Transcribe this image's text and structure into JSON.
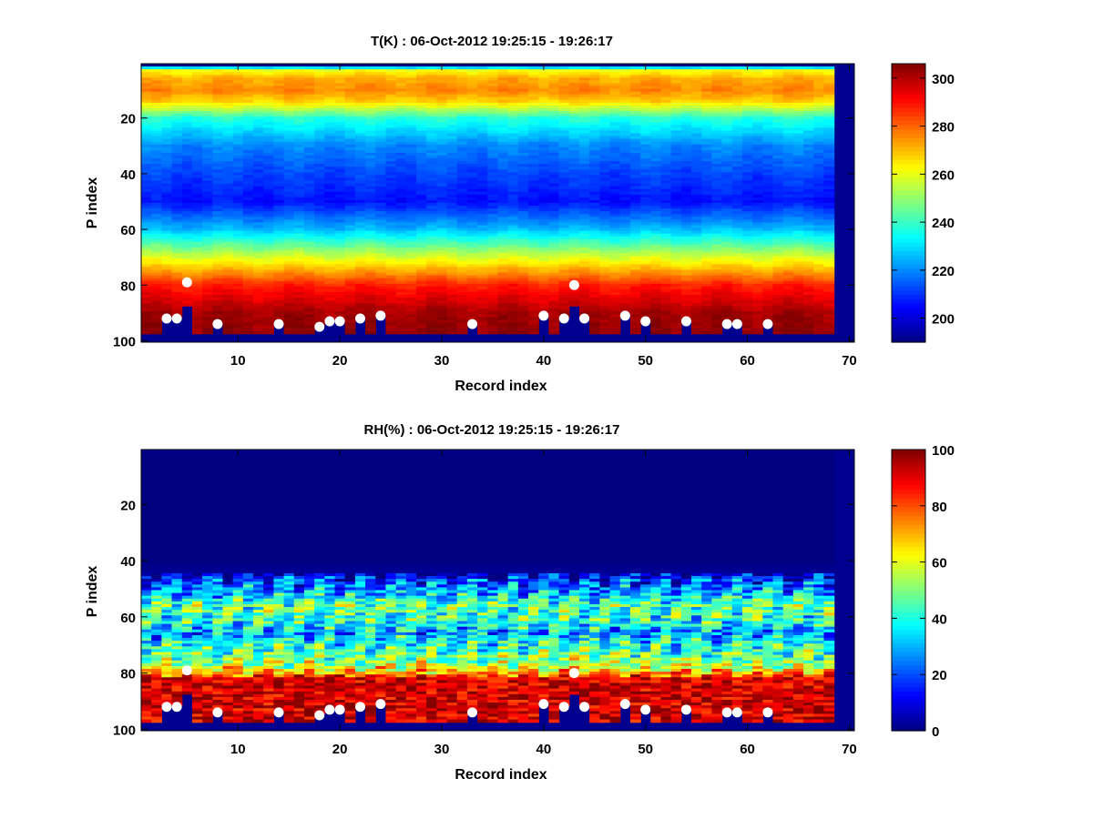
{
  "chart_data": [
    {
      "type": "heatmap",
      "title": "T(K) : 06-Oct-2012 19:25:15 - 19:26:17",
      "xlabel": "Record index",
      "ylabel": "P index",
      "xlim": [
        0.5,
        70.5
      ],
      "ylim": [
        0.5,
        100.5
      ],
      "y_reversed": true,
      "xticks": [
        10,
        20,
        30,
        40,
        50,
        60,
        70
      ],
      "yticks": [
        20,
        40,
        60,
        80,
        100
      ],
      "n_records": 68,
      "colormap": "jet",
      "colorbar": {
        "min": 190,
        "max": 306,
        "ticks": [
          200,
          220,
          240,
          260,
          280,
          300
        ]
      },
      "fill_color": "#00008f",
      "profile_mean": {
        "p": [
          1,
          3,
          6,
          10,
          14,
          20,
          30,
          40,
          50,
          60,
          70,
          80,
          90,
          97
        ],
        "value": [
          200,
          262,
          272,
          276,
          268,
          238,
          220,
          212,
          206,
          226,
          258,
          288,
          302,
          304
        ]
      },
      "markers": [
        {
          "x": 3,
          "y": 92
        },
        {
          "x": 4,
          "y": 92
        },
        {
          "x": 5,
          "y": 79
        },
        {
          "x": 8,
          "y": 94
        },
        {
          "x": 14,
          "y": 94
        },
        {
          "x": 18,
          "y": 95
        },
        {
          "x": 19,
          "y": 93
        },
        {
          "x": 20,
          "y": 93
        },
        {
          "x": 22,
          "y": 92
        },
        {
          "x": 24,
          "y": 91
        },
        {
          "x": 33,
          "y": 94
        },
        {
          "x": 40,
          "y": 91
        },
        {
          "x": 42,
          "y": 92
        },
        {
          "x": 43,
          "y": 80
        },
        {
          "x": 44,
          "y": 92
        },
        {
          "x": 48,
          "y": 91
        },
        {
          "x": 50,
          "y": 93
        },
        {
          "x": 54,
          "y": 93
        },
        {
          "x": 58,
          "y": 94
        },
        {
          "x": 59,
          "y": 94
        },
        {
          "x": 62,
          "y": 94
        }
      ]
    },
    {
      "type": "heatmap",
      "title": "RH(%) : 06-Oct-2012 19:25:15 - 19:26:17",
      "xlabel": "Record index",
      "ylabel": "P index",
      "xlim": [
        0.5,
        70.5
      ],
      "ylim": [
        0.5,
        100.5
      ],
      "y_reversed": true,
      "xticks": [
        10,
        20,
        30,
        40,
        50,
        60,
        70
      ],
      "yticks": [
        20,
        40,
        60,
        80,
        100
      ],
      "n_records": 68,
      "colormap": "jet",
      "colorbar": {
        "min": 0,
        "max": 100,
        "ticks": [
          0,
          20,
          40,
          60,
          80,
          100
        ]
      },
      "fill_color": "#00008f",
      "profile_mean": {
        "p": [
          1,
          40,
          44,
          47,
          52,
          56,
          62,
          66,
          70,
          75,
          78,
          80,
          82,
          86,
          97
        ],
        "value": [
          0,
          0,
          2,
          18,
          32,
          48,
          40,
          28,
          40,
          50,
          60,
          72,
          90,
          95,
          95
        ]
      },
      "markers": [
        {
          "x": 3,
          "y": 92
        },
        {
          "x": 4,
          "y": 92
        },
        {
          "x": 5,
          "y": 79
        },
        {
          "x": 8,
          "y": 94
        },
        {
          "x": 14,
          "y": 94
        },
        {
          "x": 18,
          "y": 95
        },
        {
          "x": 19,
          "y": 93
        },
        {
          "x": 20,
          "y": 93
        },
        {
          "x": 22,
          "y": 92
        },
        {
          "x": 24,
          "y": 91
        },
        {
          "x": 33,
          "y": 94
        },
        {
          "x": 40,
          "y": 91
        },
        {
          "x": 42,
          "y": 92
        },
        {
          "x": 43,
          "y": 80
        },
        {
          "x": 44,
          "y": 92
        },
        {
          "x": 48,
          "y": 91
        },
        {
          "x": 50,
          "y": 93
        },
        {
          "x": 54,
          "y": 93
        },
        {
          "x": 58,
          "y": 94
        },
        {
          "x": 59,
          "y": 94
        },
        {
          "x": 62,
          "y": 94
        }
      ]
    }
  ]
}
